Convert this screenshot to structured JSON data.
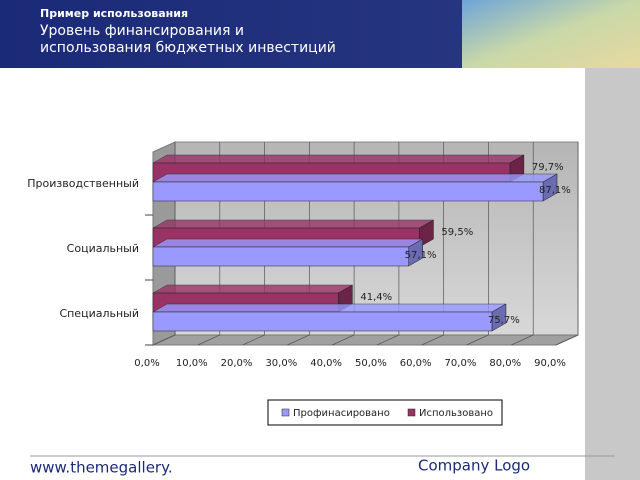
{
  "header": {
    "subtitle": "Пример использования",
    "title_lines": [
      "Уровень финансирования и",
      "использования  бюджетных инвестиций"
    ]
  },
  "footer": {
    "url": "www.themegallery.",
    "logo": "Company Logo"
  },
  "chart_data": {
    "type": "bar",
    "orientation": "horizontal",
    "categories": [
      "Производственный",
      "Социальный",
      "Специальный"
    ],
    "series": [
      {
        "name": "Использовано",
        "color": "#993366",
        "values": [
          79.7,
          59.5,
          41.4
        ],
        "value_labels": [
          "79,7%",
          "59,5%",
          "41,4%"
        ]
      },
      {
        "name": "Профинасировано",
        "color": "#9999ff",
        "values": [
          87.1,
          57.1,
          75.7
        ],
        "value_labels": [
          "87,1%",
          "57,1%",
          "75,7%"
        ]
      }
    ],
    "legend_order": [
      1,
      0
    ],
    "xlim": [
      0,
      90
    ],
    "xticks": [
      {
        "value": 0,
        "label": "0,0%"
      },
      {
        "value": 10,
        "label": "10,0%"
      },
      {
        "value": 20,
        "label": "20,0%"
      },
      {
        "value": 30,
        "label": "30,0%"
      },
      {
        "value": 40,
        "label": "40,0%"
      },
      {
        "value": 50,
        "label": "50,0%"
      },
      {
        "value": 60,
        "label": "60,0%"
      },
      {
        "value": 70,
        "label": "70,0%"
      },
      {
        "value": 80,
        "label": "80,0%"
      },
      {
        "value": 90,
        "label": "90,0%"
      }
    ],
    "grid": true,
    "legend": "bottom"
  }
}
